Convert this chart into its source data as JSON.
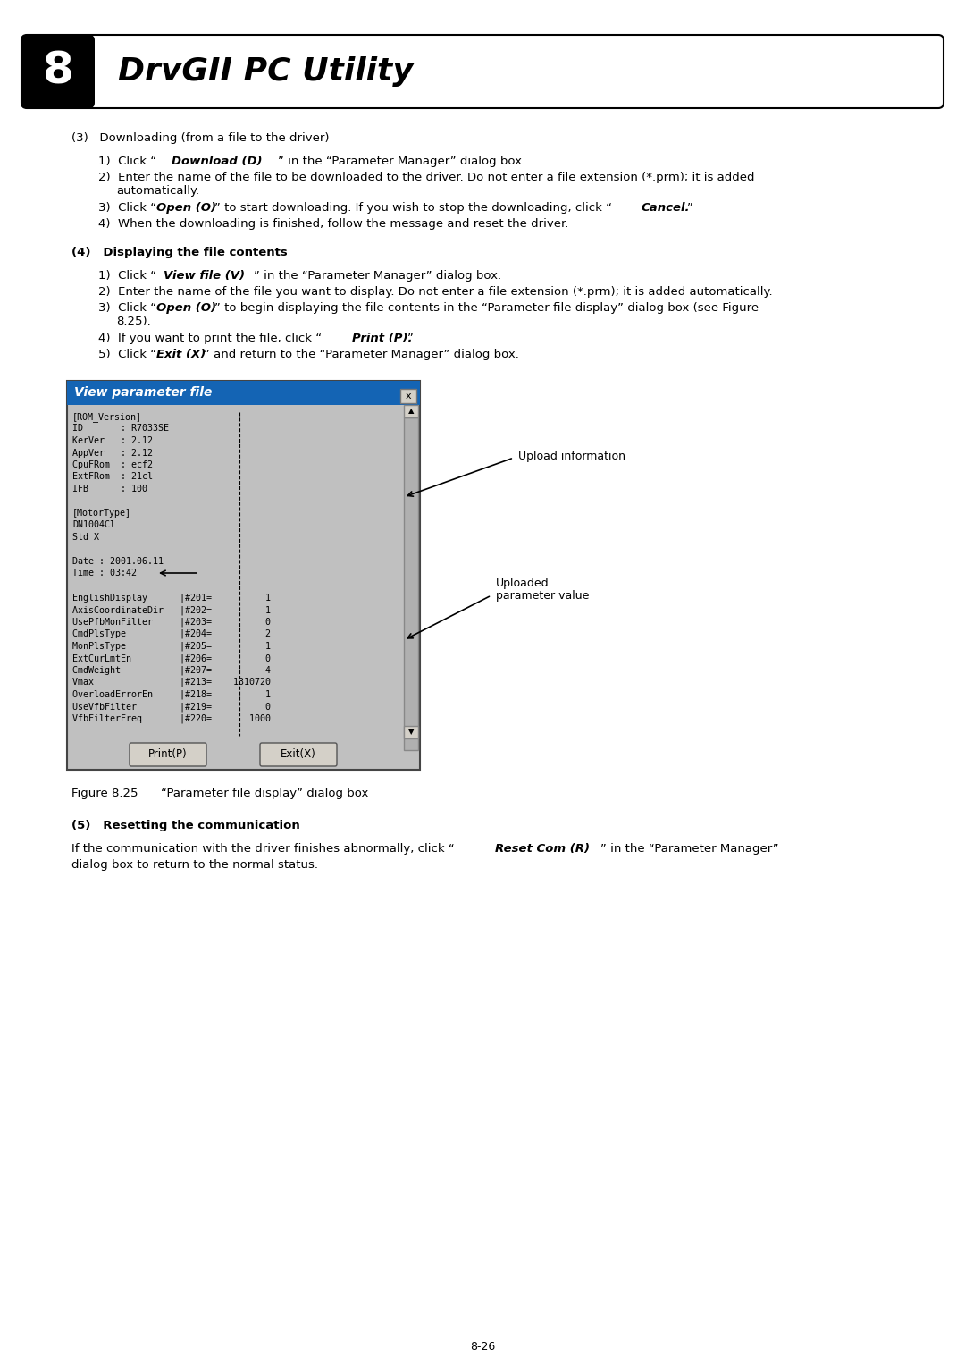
{
  "page_bg": "#ffffff",
  "header_bg": "#000000",
  "header_text_color": "#ffffff",
  "header_number": "8",
  "header_title": "DrvGII PC Utility",
  "section3_title": "(3)   Downloading (from a file to the driver)",
  "section4_title": "(4)   Displaying the file contents",
  "dialog_title": "View parameter file",
  "dialog_title_bg": "#1464b4",
  "dialog_title_text": "#ffffff",
  "dialog_bg": "#c0c0c0",
  "dialog_lines": [
    "[ROM_Version]",
    "ID       : R7033SE",
    "KerVer   : 2.12",
    "AppVer   : 2.12",
    "CpuFRom  : ecf2",
    "ExtFRom  : 21cl",
    "IFB      : 100",
    "",
    "[MotorType]",
    "DN1004Cl",
    "Std X",
    "",
    "Date : 2001.06.11",
    "Time : 03:42",
    "",
    "EnglishDisplay      |#201=          1",
    "AxisCoordinateDir   |#202=          1",
    "UsePfbMonFilter     |#203=          0",
    "CmdPlsType          |#204=          2",
    "MonPlsType          |#205=          1",
    "ExtCurLmtEn         |#206=          0",
    "CmdWeight           |#207=          4",
    "Vmax                |#213=    1310720",
    "OverloadErrorEn     |#218=          1",
    "UseVfbFilter        |#219=          0",
    "VfbFilterFreq       |#220=       1000"
  ],
  "annotation1_text": "Upload information",
  "annotation2_line1": "Uploaded",
  "annotation2_line2": "parameter value",
  "figure_caption": "Figure 8.25      “Parameter file display” dialog box",
  "section5_title": "(5)   Resetting the communication",
  "page_number": "8-26",
  "body_font_size": 9.5,
  "dialog_font_size": 7.2,
  "print_btn_label": "Print(P)",
  "exit_btn_label": "Exit(X)"
}
